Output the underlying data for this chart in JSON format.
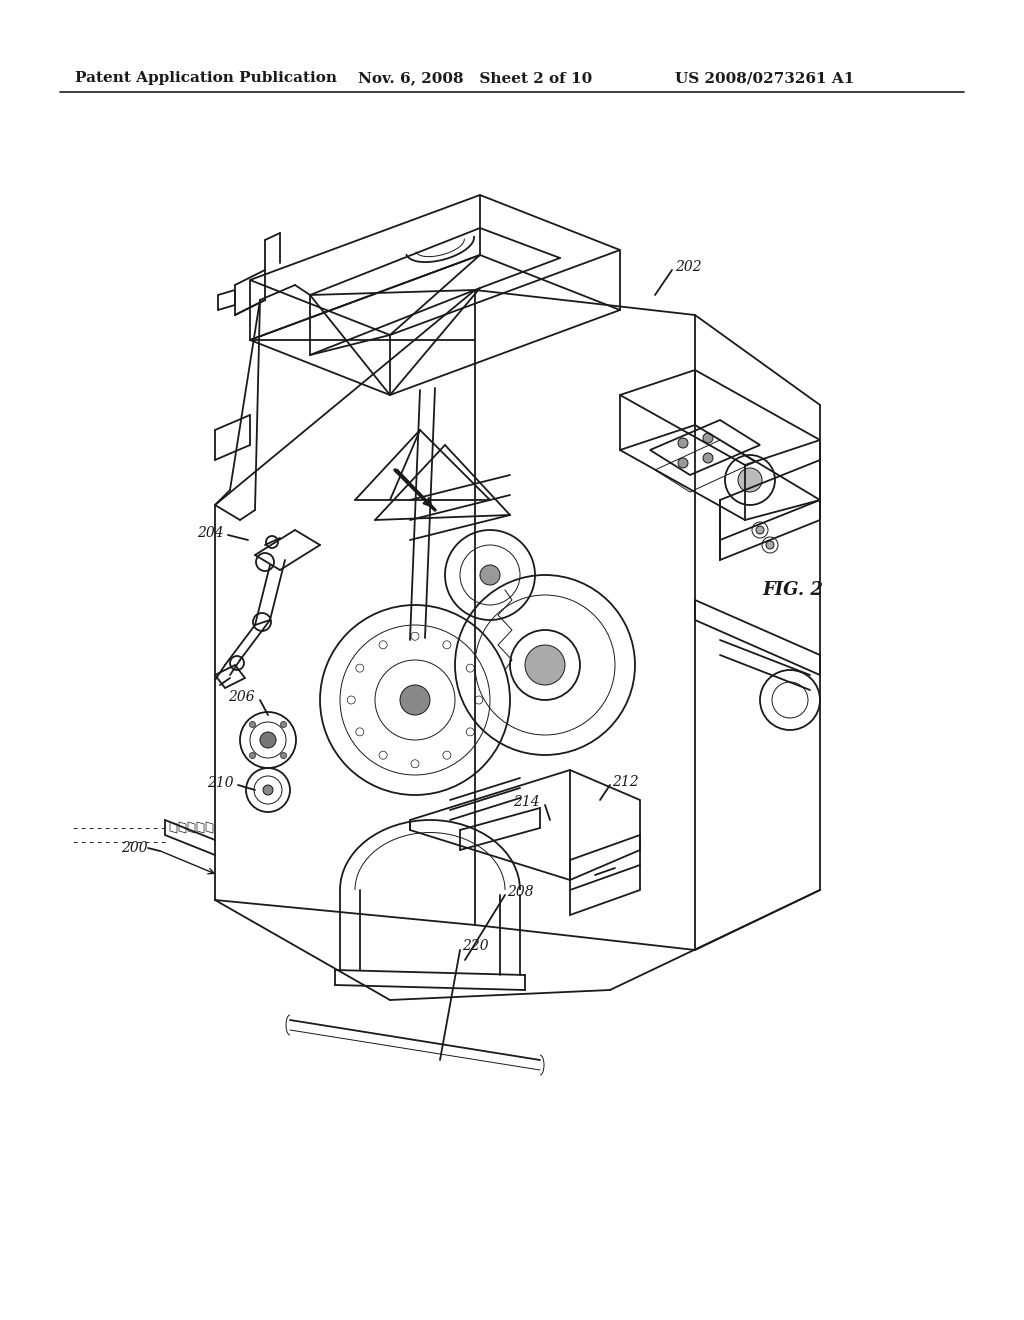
{
  "background_color": "#ffffff",
  "header_left": "Patent Application Publication",
  "header_mid": "Nov. 6, 2008   Sheet 2 of 10",
  "header_right": "US 2008/0273261 A1",
  "fig_label": "FIG. 2",
  "header_fontsize": 11,
  "label_fontsize": 10,
  "line_color": "#1a1a1a",
  "lw_main": 1.3,
  "lw_thin": 0.7,
  "lw_thick": 2.0
}
